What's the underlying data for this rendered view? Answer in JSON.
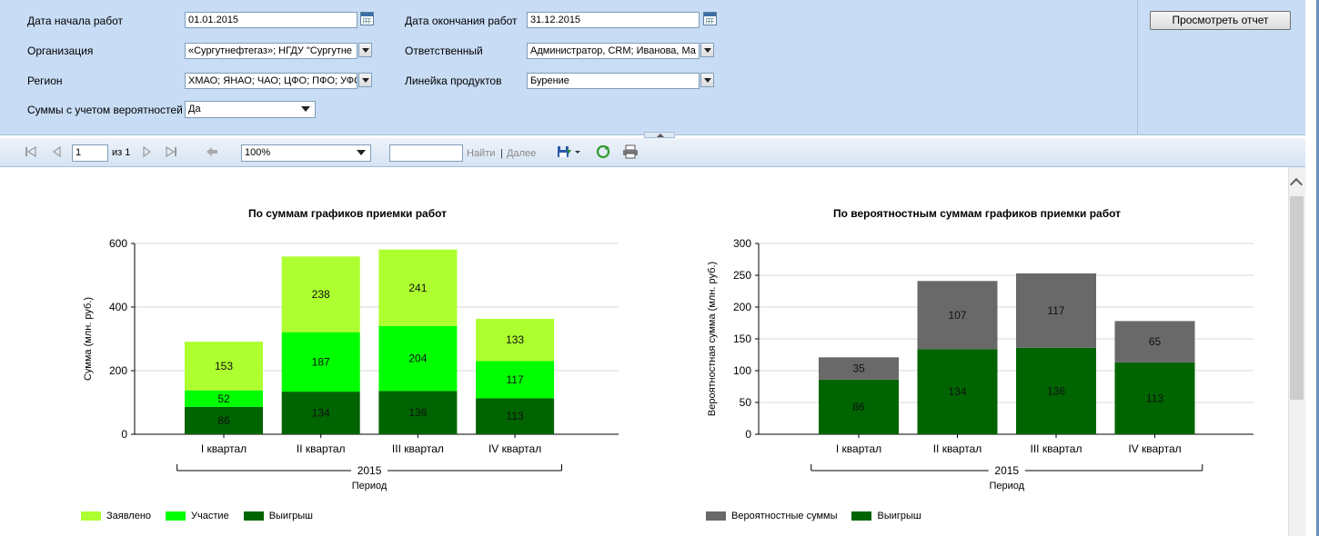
{
  "params": {
    "start_date_label": "Дата начала работ",
    "start_date_value": "01.01.2015",
    "end_date_label": "Дата окончания работ",
    "end_date_value": "31.12.2015",
    "org_label": "Организация",
    "org_value": "«Сургутнефтегаз»; НГДУ \"Сургутне",
    "resp_label": "Ответственный",
    "resp_value": "Администратор, CRM; Иванова, Ма",
    "region_label": "Регион",
    "region_value": "ХМАО; ЯНАО; ЧАО; ЦФО; ПФО; УФО",
    "product_label": "Линейка продуктов",
    "product_value": "Бурение",
    "prob_label": "Суммы с учетом вероятностей",
    "prob_value": "Да",
    "view_button": "Просмотреть отчет"
  },
  "toolbar": {
    "page_current": "1",
    "page_of": "из 1",
    "zoom": "100%",
    "find_label": "Найти",
    "sep": "|",
    "next_label": "Далее"
  },
  "chart_data": [
    {
      "type": "bar",
      "stacked": true,
      "title": "По суммам графиков приемки работ",
      "ylabel": "Сумма (млн. руб.)",
      "xlabel": "Период",
      "group_label": "2015",
      "ylim": [
        0,
        600
      ],
      "yticks": [
        0,
        200,
        400,
        600
      ],
      "grid": true,
      "legend_position": "bottom-left",
      "categories": [
        "I квартал",
        "II квартал",
        "III квартал",
        "IV квартал"
      ],
      "series": [
        {
          "name": "Выигрыш",
          "values": [
            86,
            134,
            136,
            113
          ],
          "color": "#006400"
        },
        {
          "name": "Участие",
          "values": [
            52,
            187,
            204,
            117
          ],
          "color": "#00ff00"
        },
        {
          "name": "Заявлено",
          "values": [
            153,
            238,
            241,
            133
          ],
          "color": "#adff2f"
        }
      ],
      "legend_order": [
        "Заявлено",
        "Участие",
        "Выигрыш"
      ]
    },
    {
      "type": "bar",
      "stacked": true,
      "title": "По вероятностным суммам графиков приемки работ",
      "ylabel": "Вероятностная сумма (млн. руб.)",
      "xlabel": "Период",
      "group_label": "2015",
      "ylim": [
        0,
        300
      ],
      "yticks": [
        0,
        50,
        100,
        150,
        200,
        250,
        300
      ],
      "grid": true,
      "legend_position": "bottom-left",
      "categories": [
        "I квартал",
        "II квартал",
        "III квартал",
        "IV квартал"
      ],
      "series": [
        {
          "name": "Выигрыш",
          "values": [
            86,
            134,
            136,
            113
          ],
          "color": "#006400"
        },
        {
          "name": "Вероятностные суммы",
          "values": [
            35,
            107,
            117,
            65
          ],
          "color": "#696969"
        }
      ],
      "legend_order": [
        "Вероятностные суммы",
        "Выигрыш"
      ]
    }
  ]
}
